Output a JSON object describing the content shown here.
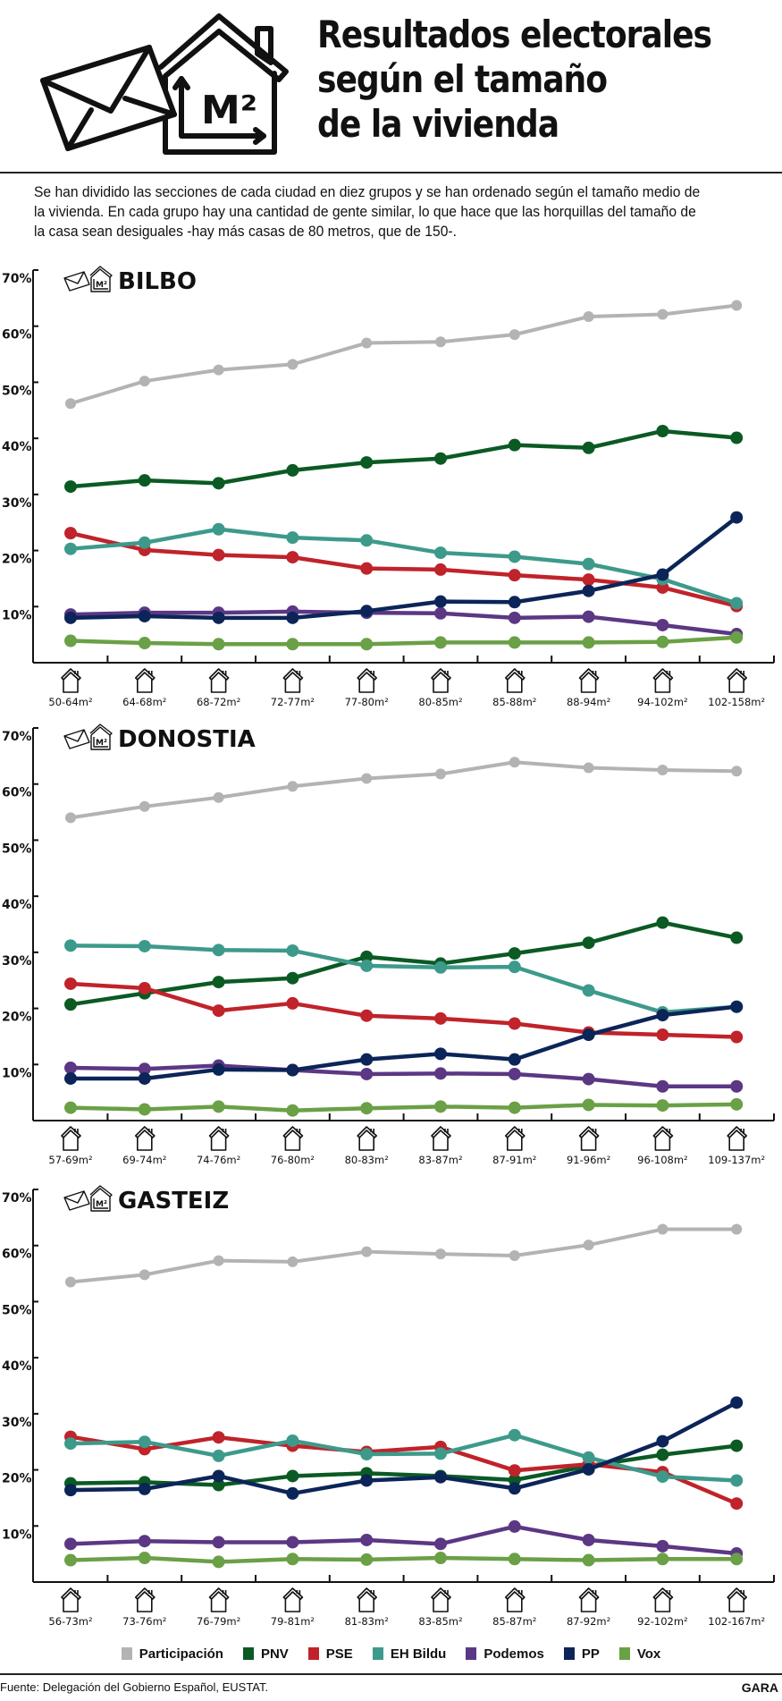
{
  "header": {
    "title_lines": [
      "Resultados electorales",
      "según el tamaño",
      "de la vivienda"
    ],
    "icon": "envelope-house-m2-icon",
    "icon_text": "M²",
    "description": "Se han dividido las secciones de cada ciudad en diez grupos y se han ordenado según el tamaño medio de la vivienda. En cada grupo hay una cantidad de gente similar, lo que hace que las horquillas del tamaño de la casa sean desiguales -hay más casas de 80 metros, que de 150-."
  },
  "legend": [
    {
      "name": "Participación",
      "color": "#b3b3b3"
    },
    {
      "name": "PNV",
      "color": "#0b5a24"
    },
    {
      "name": "PSE",
      "color": "#c0232a"
    },
    {
      "name": "EH Bildu",
      "color": "#3d9a8b"
    },
    {
      "name": "Podemos",
      "color": "#5b3784"
    },
    {
      "name": "PP",
      "color": "#0c2558"
    },
    {
      "name": "Vox",
      "color": "#6aa046"
    }
  ],
  "footer": {
    "source": "Fuente: Delegación del Gobierno Español, EUSTAT.",
    "brand": "GARA"
  },
  "chart_data": [
    {
      "type": "line",
      "title": "BILBO",
      "ylim": [
        0,
        70
      ],
      "yticks": [
        "10%",
        "20%",
        "30%",
        "40%",
        "50%",
        "60%",
        "70%"
      ],
      "categories": [
        "50-64m²",
        "64-68m²",
        "68-72m²",
        "72-77m²",
        "77-80m²",
        "80-85m²",
        "85-88m²",
        "88-94m²",
        "94-102m²",
        "102-158m²"
      ],
      "series": [
        {
          "name": "Participación",
          "values": [
            46.2,
            50.2,
            52.2,
            53.2,
            57.0,
            57.2,
            58.5,
            61.7,
            62.1,
            63.7
          ]
        },
        {
          "name": "PNV",
          "values": [
            31.4,
            32.5,
            32.0,
            34.3,
            35.7,
            36.4,
            38.8,
            38.3,
            41.3,
            40.1
          ]
        },
        {
          "name": "PSE",
          "values": [
            23.1,
            20.1,
            19.2,
            18.8,
            16.8,
            16.6,
            15.6,
            14.8,
            13.4,
            10.1
          ]
        },
        {
          "name": "EH Bildu",
          "values": [
            20.3,
            21.4,
            23.8,
            22.3,
            21.8,
            19.6,
            18.9,
            17.6,
            14.9,
            10.6
          ]
        },
        {
          "name": "Podemos",
          "values": [
            8.6,
            8.9,
            8.9,
            9.1,
            8.9,
            8.8,
            8.0,
            8.2,
            6.7,
            5.1
          ]
        },
        {
          "name": "PP",
          "values": [
            8.0,
            8.3,
            8.0,
            8.0,
            9.2,
            10.9,
            10.8,
            12.8,
            15.7,
            25.9
          ]
        },
        {
          "name": "Vox",
          "values": [
            3.9,
            3.5,
            3.3,
            3.3,
            3.3,
            3.6,
            3.6,
            3.6,
            3.7,
            4.5
          ]
        }
      ]
    },
    {
      "type": "line",
      "title": "DONOSTIA",
      "ylim": [
        0,
        70
      ],
      "yticks": [
        "10%",
        "20%",
        "30%",
        "40%",
        "50%",
        "60%",
        "70%"
      ],
      "categories": [
        "57-69m²",
        "69-74m²",
        "74-76m²",
        "76-80m²",
        "80-83m²",
        "83-87m²",
        "87-91m²",
        "91-96m²",
        "96-108m²",
        "109-137m²"
      ],
      "series": [
        {
          "name": "Participación",
          "values": [
            54.0,
            56.0,
            57.6,
            59.6,
            61.0,
            61.8,
            63.9,
            62.9,
            62.5,
            62.3
          ]
        },
        {
          "name": "PNV",
          "values": [
            20.7,
            22.7,
            24.7,
            25.4,
            29.2,
            28.0,
            29.8,
            31.7,
            35.3,
            32.6
          ]
        },
        {
          "name": "PSE",
          "values": [
            24.4,
            23.6,
            19.6,
            20.9,
            18.7,
            18.2,
            17.3,
            15.7,
            15.3,
            14.9
          ]
        },
        {
          "name": "EH Bildu",
          "values": [
            31.2,
            31.1,
            30.4,
            30.3,
            27.6,
            27.3,
            27.4,
            23.2,
            19.3,
            20.3
          ]
        },
        {
          "name": "Podemos",
          "values": [
            9.4,
            9.2,
            9.8,
            9.0,
            8.3,
            8.4,
            8.3,
            7.4,
            6.1,
            6.1
          ]
        },
        {
          "name": "PP",
          "values": [
            7.5,
            7.5,
            9.1,
            9.0,
            10.9,
            11.9,
            10.9,
            15.3,
            18.8,
            20.3
          ]
        },
        {
          "name": "Vox",
          "values": [
            2.3,
            2.0,
            2.5,
            1.8,
            2.2,
            2.5,
            2.3,
            2.8,
            2.7,
            2.9
          ]
        }
      ]
    },
    {
      "type": "line",
      "title": "GASTEIZ",
      "ylim": [
        0,
        70
      ],
      "yticks": [
        "10%",
        "20%",
        "30%",
        "40%",
        "50%",
        "60%",
        "70%"
      ],
      "categories": [
        "56-73m²",
        "73-76m²",
        "76-79m²",
        "79-81m²",
        "81-83m²",
        "83-85m²",
        "85-87m²",
        "87-92m²",
        "92-102m²",
        "102-167m²"
      ],
      "series": [
        {
          "name": "Participación",
          "values": [
            53.5,
            54.8,
            57.3,
            57.1,
            58.9,
            58.5,
            58.2,
            60.1,
            62.9,
            62.9
          ]
        },
        {
          "name": "PNV",
          "values": [
            17.6,
            17.8,
            17.3,
            18.9,
            19.4,
            18.9,
            18.2,
            20.7,
            22.7,
            24.3
          ]
        },
        {
          "name": "PSE",
          "values": [
            25.9,
            23.7,
            25.8,
            24.3,
            23.2,
            24.1,
            19.9,
            21.0,
            19.6,
            14.0
          ]
        },
        {
          "name": "EH Bildu",
          "values": [
            24.7,
            25.0,
            22.5,
            25.2,
            22.8,
            22.9,
            26.2,
            22.2,
            18.8,
            18.1
          ]
        },
        {
          "name": "Podemos",
          "values": [
            6.8,
            7.3,
            7.1,
            7.1,
            7.5,
            6.8,
            9.9,
            7.5,
            6.4,
            5.1
          ]
        },
        {
          "name": "PP",
          "values": [
            16.4,
            16.6,
            18.9,
            15.8,
            18.1,
            18.7,
            16.7,
            20.1,
            25.1,
            32.0
          ]
        },
        {
          "name": "Vox",
          "values": [
            3.9,
            4.3,
            3.6,
            4.1,
            4.0,
            4.3,
            4.1,
            3.9,
            4.1,
            4.1
          ]
        }
      ]
    }
  ]
}
